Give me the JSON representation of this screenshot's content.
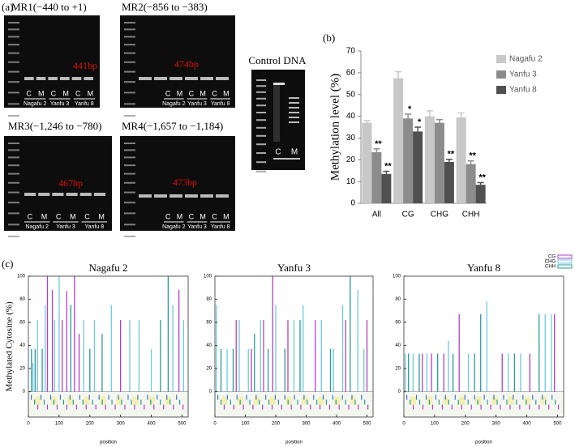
{
  "panel_a": {
    "label": "(a)",
    "gels": [
      {
        "title": "MR1(−440 to +1)",
        "band_label": "441bp",
        "lanes": [
          "C",
          "M",
          "C",
          "M",
          "C",
          "M"
        ],
        "samples": [
          "Nagafu 2",
          "Yanfu 3",
          "Yanfu 8"
        ]
      },
      {
        "title": "MR2(−856 to −383)",
        "band_label": "474bp",
        "lanes": [
          "C",
          "M",
          "C",
          "M",
          "C",
          "M"
        ],
        "samples": [
          "Nagafu 2",
          "Yanfu 3",
          "Yanfu 8"
        ]
      },
      {
        "title": "MR3(−1,246 to −780)",
        "band_label": "467bp",
        "lanes": [
          "C",
          "M",
          "C",
          "M",
          "C",
          "M"
        ],
        "samples": [
          "Nagafu 2",
          "Yanfu 3",
          "Yanfu 8"
        ]
      },
      {
        "title": "MR4(−1,657 to −1,184)",
        "band_label": "473bp",
        "lanes": [
          "C",
          "M",
          "C",
          "M",
          "C",
          "M"
        ],
        "samples": [
          "Nagafu 2",
          "Yanfu 3",
          "Yanfu 8"
        ]
      }
    ],
    "control": {
      "title": "Control DNA",
      "lanes": [
        "C",
        "M"
      ]
    }
  },
  "chart_data": [
    {
      "type": "bar",
      "label": "(b)",
      "ylabel": "Methylation level (%)",
      "categories": [
        "All",
        "CG",
        "CHG",
        "CHH"
      ],
      "ylim": [
        0,
        70
      ],
      "yticks": [
        0,
        10,
        20,
        30,
        40,
        50,
        60,
        70
      ],
      "series": [
        {
          "name": "Nagafu 2",
          "color": "#c8c8c8",
          "values": [
            37,
            57.5,
            40,
            39.5
          ],
          "errors": [
            1,
            3,
            2.5,
            2
          ]
        },
        {
          "name": "Yanfu 3",
          "color": "#8c8c8c",
          "values": [
            23.5,
            39,
            37,
            18
          ],
          "errors": [
            1.5,
            2,
            1.5,
            1.5
          ],
          "significance": [
            "**",
            "*",
            null,
            "**"
          ]
        },
        {
          "name": "Yanfu 8",
          "color": "#505050",
          "values": [
            13.5,
            33,
            19,
            8.5
          ],
          "errors": [
            1.2,
            2,
            1.2,
            1
          ],
          "significance": [
            "**",
            "*",
            "**",
            "**"
          ]
        }
      ]
    },
    {
      "type": "stem",
      "label": "(c)",
      "title": "Nagafu 2",
      "ylabel": "Methylated Cytosine (%)",
      "xlabel": "position",
      "xlim": [
        0,
        520
      ],
      "xticks": [
        0,
        100,
        200,
        300,
        400,
        500
      ],
      "ylim": [
        -22,
        100
      ],
      "yticks": [
        0,
        20,
        40,
        60,
        80,
        100
      ],
      "series": [
        {
          "name": "CG",
          "color": "#b040c8",
          "x": [
            62,
            78,
            110,
            125,
            150,
            165,
            300,
            490
          ],
          "values": [
            100,
            88,
            62,
            87,
            100,
            50,
            62,
            88
          ]
        },
        {
          "name": "CHG",
          "color": "#70c8e0",
          "x": [
            15,
            30,
            55,
            85,
            100,
            180,
            215,
            270,
            330,
            360,
            400,
            470,
            505
          ],
          "values": [
            25,
            62,
            75,
            62,
            100,
            62,
            62,
            75,
            62,
            62,
            37,
            75,
            62
          ]
        },
        {
          "name": "CHH",
          "color": "#2a9a9a",
          "x": [
            10,
            22,
            45,
            138,
            200,
            240,
            430,
            455
          ],
          "values": [
            37,
            37,
            37,
            75,
            37,
            50,
            62,
            100
          ]
        }
      ]
    },
    {
      "type": "stem",
      "title": "Yanfu 3",
      "xlabel": "position",
      "xlim": [
        0,
        520
      ],
      "xticks": [
        0,
        100,
        200,
        300,
        400,
        500
      ],
      "ylim": [
        -22,
        100
      ],
      "yticks": [
        0,
        20,
        40,
        60,
        80,
        100
      ],
      "series": [
        {
          "name": "CG",
          "color": "#b040c8",
          "x": [
            70,
            120,
            160,
            190,
            240,
            330,
            430,
            500
          ],
          "values": [
            62,
            37,
            62,
            100,
            62,
            62,
            62,
            62
          ]
        },
        {
          "name": "CHG",
          "color": "#70c8e0",
          "x": [
            5,
            40,
            80,
            110,
            150,
            200,
            260,
            290,
            350,
            390,
            420,
            470,
            490
          ],
          "values": [
            75,
            37,
            62,
            37,
            62,
            75,
            62,
            75,
            62,
            37,
            75,
            88,
            37
          ]
        },
        {
          "name": "CHH",
          "color": "#2a9a9a",
          "x": [
            20,
            60,
            130,
            175,
            230,
            280,
            380,
            445
          ],
          "values": [
            37,
            37,
            50,
            37,
            37,
            62,
            37,
            100
          ]
        }
      ]
    },
    {
      "type": "stem",
      "title": "Yanfu 8",
      "xlabel": "position",
      "xlim": [
        0,
        520
      ],
      "xticks": [
        0,
        100,
        200,
        300,
        400,
        500
      ],
      "ylim": [
        -22,
        100
      ],
      "yticks": [
        0,
        20,
        40,
        60,
        80,
        100
      ],
      "series": [
        {
          "name": "CG",
          "color": "#b040c8",
          "x": [
            60,
            90,
            130,
            180,
            320,
            410,
            490
          ],
          "values": [
            33,
            33,
            33,
            67,
            33,
            33,
            67
          ]
        },
        {
          "name": "CHG",
          "color": "#70c8e0",
          "x": [
            5,
            30,
            75,
            145,
            210,
            270,
            340,
            380,
            460,
            480
          ],
          "values": [
            33,
            33,
            33,
            44,
            33,
            78,
            33,
            33,
            67,
            67
          ]
        },
        {
          "name": "CHH",
          "color": "#2a9a9a",
          "x": [
            15,
            50,
            110,
            160,
            230,
            250,
            360,
            440
          ],
          "values": [
            33,
            33,
            33,
            33,
            33,
            67,
            33,
            67
          ]
        }
      ]
    }
  ]
}
